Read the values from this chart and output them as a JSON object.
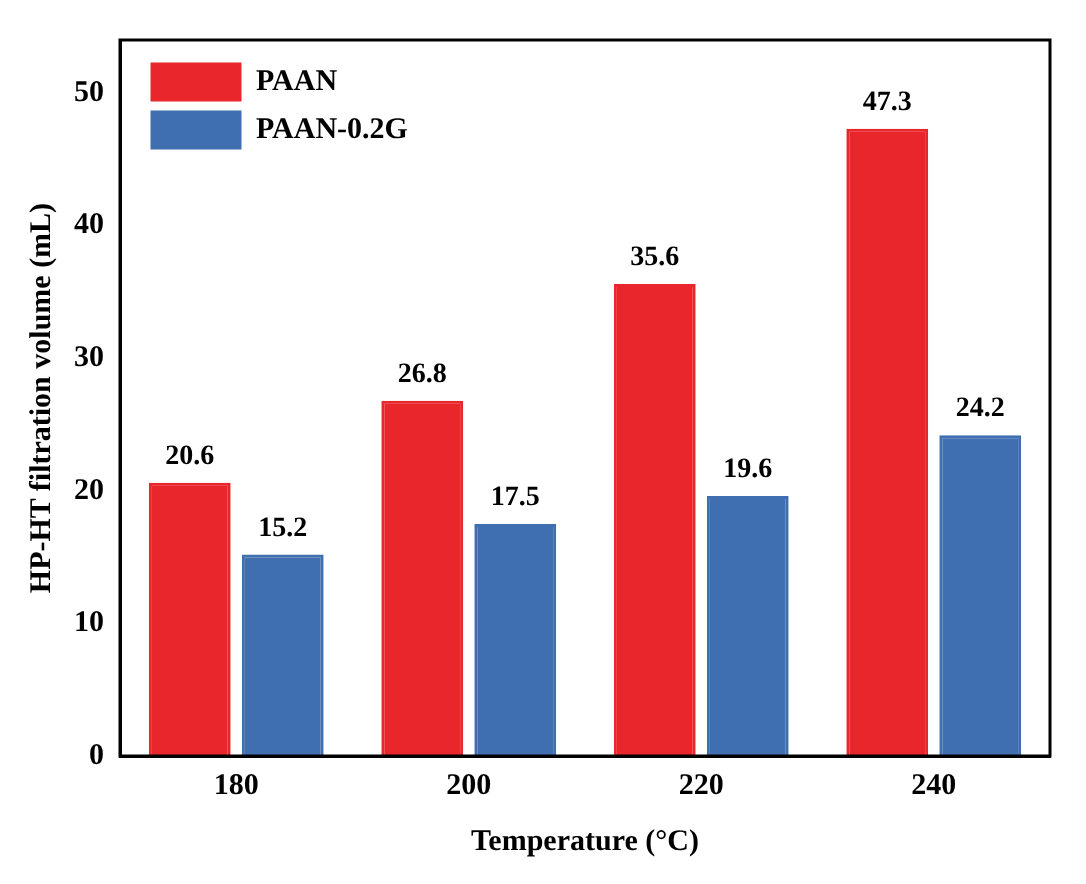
{
  "chart_data": {
    "type": "bar",
    "xlabel": "Temperature (°C)",
    "ylabel": "HP-HT filtration volume (mL)",
    "categories": [
      "180",
      "200",
      "220",
      "240"
    ],
    "series": [
      {
        "name": "PAAN",
        "color": "#e8262b",
        "values": [
          20.6,
          26.8,
          35.6,
          47.3
        ]
      },
      {
        "name": "PAAN-0.2G",
        "color": "#3f6fb0",
        "values": [
          15.2,
          17.5,
          19.6,
          24.2
        ]
      }
    ],
    "ylim": [
      0,
      54
    ],
    "yticks": [
      0,
      10,
      20,
      30,
      40,
      50
    ],
    "grid": false,
    "legend": "top left",
    "data_labels": true
  }
}
